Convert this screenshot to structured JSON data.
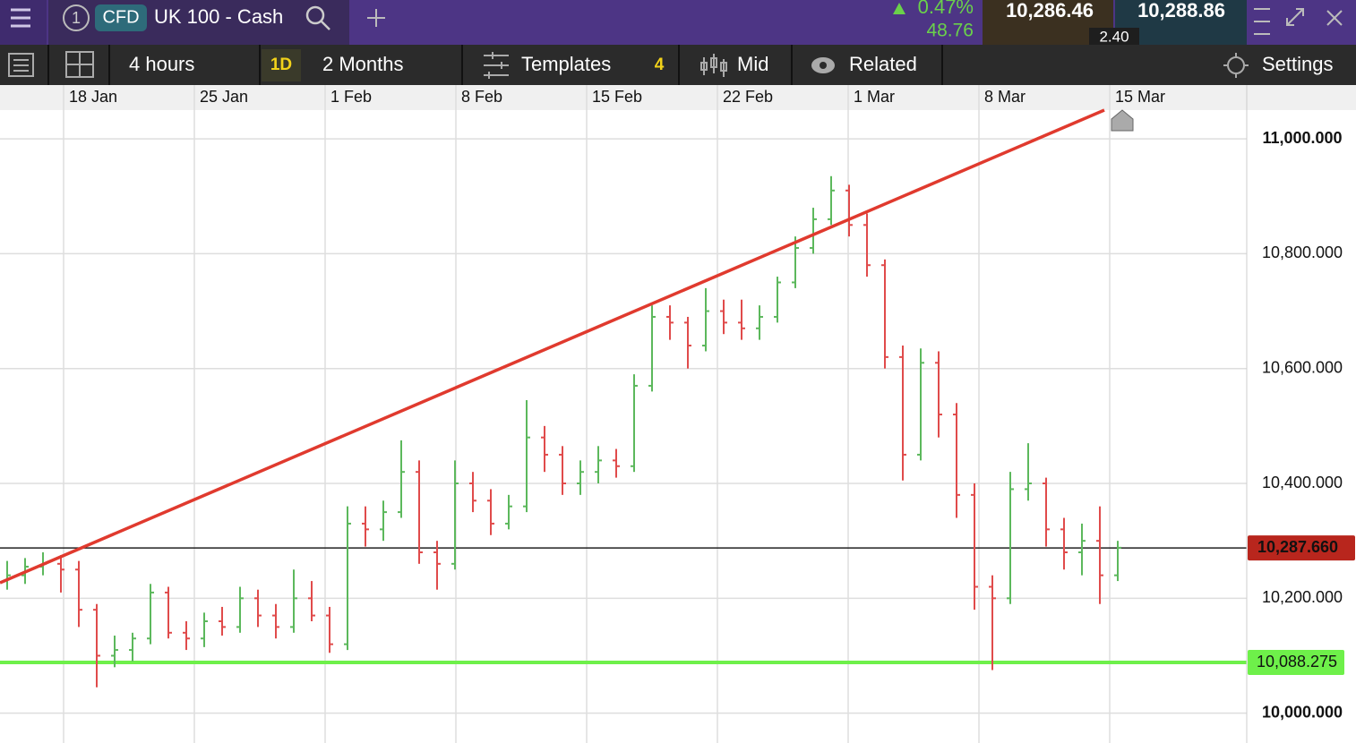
{
  "header": {
    "instance": "1",
    "badge": "CFD",
    "market": "UK 100 - Cash",
    "change_pct": "0.47%",
    "change": "48.76",
    "sell": "10,286.46",
    "buy": "10,288.86",
    "spread": "2.40"
  },
  "toolbar": {
    "interval": "4 hours",
    "period_badge": "1D",
    "period": "2 Months",
    "templates": "Templates",
    "templates_count": "4",
    "price_type": "Mid",
    "related": "Related",
    "settings": "Settings"
  },
  "chart_data": {
    "type": "ohlc",
    "ylim": [
      9948,
      11050
    ],
    "yticks": [
      {
        "value": 10000,
        "label": "10,000.000"
      },
      {
        "value": 10200,
        "label": "10,200.000"
      },
      {
        "value": 10400,
        "label": "10,400.000"
      },
      {
        "value": 10600,
        "label": "10,600.000"
      },
      {
        "value": 10800,
        "label": "10,800.000"
      },
      {
        "value": 11000,
        "label": "11,000.000"
      }
    ],
    "xticks": [
      "18 Jan",
      "25 Jan",
      "1 Feb",
      "8 Feb",
      "15 Feb",
      "22 Feb",
      "1 Mar",
      "8 Mar",
      "15 Mar"
    ],
    "up_color": "#5cb85c",
    "down_color": "#e04b4b",
    "grid": true,
    "bars": [
      [
        10230,
        10265,
        10215,
        10240
      ],
      [
        10240,
        10270,
        10225,
        10255
      ],
      [
        10255,
        10280,
        10240,
        10260
      ],
      [
        10260,
        10275,
        10210,
        10250
      ],
      [
        10250,
        10265,
        10150,
        10180
      ],
      [
        10180,
        10190,
        10045,
        10100
      ],
      [
        10100,
        10135,
        10080,
        10110
      ],
      [
        10110,
        10140,
        10090,
        10130
      ],
      [
        10130,
        10225,
        10120,
        10210
      ],
      [
        10210,
        10220,
        10130,
        10140
      ],
      [
        10140,
        10160,
        10110,
        10130
      ],
      [
        10130,
        10175,
        10115,
        10160
      ],
      [
        10160,
        10185,
        10135,
        10150
      ],
      [
        10150,
        10220,
        10140,
        10200
      ],
      [
        10200,
        10215,
        10150,
        10170
      ],
      [
        10170,
        10190,
        10130,
        10150
      ],
      [
        10150,
        10250,
        10140,
        10200
      ],
      [
        10200,
        10230,
        10160,
        10170
      ],
      [
        10170,
        10185,
        10105,
        10120
      ],
      [
        10120,
        10360,
        10110,
        10330
      ],
      [
        10330,
        10360,
        10290,
        10320
      ],
      [
        10320,
        10370,
        10300,
        10350
      ],
      [
        10350,
        10475,
        10340,
        10420
      ],
      [
        10420,
        10440,
        10260,
        10280
      ],
      [
        10280,
        10300,
        10215,
        10260
      ],
      [
        10260,
        10440,
        10250,
        10400
      ],
      [
        10400,
        10420,
        10350,
        10370
      ],
      [
        10370,
        10390,
        10310,
        10330
      ],
      [
        10330,
        10380,
        10320,
        10360
      ],
      [
        10360,
        10545,
        10350,
        10480
      ],
      [
        10480,
        10500,
        10420,
        10450
      ],
      [
        10450,
        10465,
        10380,
        10400
      ],
      [
        10400,
        10440,
        10380,
        10420
      ],
      [
        10420,
        10465,
        10400,
        10440
      ],
      [
        10440,
        10460,
        10410,
        10430
      ],
      [
        10430,
        10590,
        10420,
        10570
      ],
      [
        10570,
        10710,
        10560,
        10690
      ],
      [
        10690,
        10710,
        10650,
        10680
      ],
      [
        10680,
        10690,
        10600,
        10640
      ],
      [
        10640,
        10740,
        10630,
        10700
      ],
      [
        10700,
        10720,
        10660,
        10680
      ],
      [
        10680,
        10720,
        10650,
        10670
      ],
      [
        10670,
        10710,
        10650,
        10690
      ],
      [
        10690,
        10760,
        10680,
        10750
      ],
      [
        10750,
        10830,
        10740,
        10810
      ],
      [
        10810,
        10880,
        10800,
        10860
      ],
      [
        10860,
        10935,
        10850,
        10910
      ],
      [
        10910,
        10920,
        10830,
        10850
      ],
      [
        10850,
        10870,
        10760,
        10780
      ],
      [
        10780,
        10790,
        10600,
        10620
      ],
      [
        10620,
        10640,
        10405,
        10450
      ],
      [
        10450,
        10635,
        10440,
        10610
      ],
      [
        10610,
        10630,
        10480,
        10520
      ],
      [
        10520,
        10540,
        10340,
        10380
      ],
      [
        10380,
        10400,
        10180,
        10220
      ],
      [
        10220,
        10240,
        10075,
        10200
      ],
      [
        10200,
        10420,
        10190,
        10390
      ],
      [
        10390,
        10470,
        10370,
        10400
      ],
      [
        10400,
        10410,
        10290,
        10320
      ],
      [
        10320,
        10340,
        10250,
        10280
      ],
      [
        10280,
        10330,
        10240,
        10300
      ],
      [
        10300,
        10360,
        10190,
        10240
      ],
      [
        10240,
        10300,
        10230,
        10288
      ]
    ],
    "trendline": {
      "color": "#e03a2e",
      "values": [
        10227,
        11050
      ]
    },
    "levels": [
      {
        "value": 10287.66,
        "label": "10,287.660",
        "color": "#222222",
        "box": "#b8261d"
      },
      {
        "value": 10088.275,
        "label": "10,088.275",
        "color": "#6ef04a",
        "box": "#6ef04a"
      }
    ]
  }
}
